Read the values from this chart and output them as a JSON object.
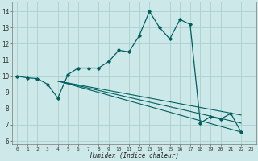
{
  "xlabel": "Humidex (Indice chaleur)",
  "bg_color": "#cde8e8",
  "grid_color": "#aacfcf",
  "line_color": "#006060",
  "xlim": [
    -0.5,
    23.5
  ],
  "ylim": [
    5.8,
    14.6
  ],
  "yticks": [
    6,
    7,
    8,
    9,
    10,
    11,
    12,
    13,
    14
  ],
  "xticks": [
    0,
    1,
    2,
    3,
    4,
    5,
    6,
    7,
    8,
    9,
    10,
    11,
    12,
    13,
    14,
    15,
    16,
    17,
    18,
    19,
    20,
    21,
    22,
    23
  ],
  "main_x": [
    0,
    1,
    2,
    3,
    4,
    5,
    6,
    7,
    8,
    9,
    10,
    11,
    12,
    13,
    14,
    15,
    16,
    17,
    18,
    19,
    20,
    21,
    22
  ],
  "main_y": [
    10.0,
    9.9,
    9.85,
    9.5,
    8.65,
    10.1,
    10.5,
    10.5,
    10.5,
    10.9,
    11.6,
    11.5,
    12.5,
    14.0,
    13.0,
    12.3,
    13.5,
    13.2,
    7.1,
    7.5,
    7.35,
    7.7,
    6.55
  ],
  "reg_lines": [
    {
      "x": [
        4,
        22
      ],
      "y": [
        9.7,
        6.55
      ]
    },
    {
      "x": [
        4,
        22
      ],
      "y": [
        9.7,
        7.1
      ]
    },
    {
      "x": [
        4,
        22
      ],
      "y": [
        9.7,
        7.6
      ]
    }
  ]
}
